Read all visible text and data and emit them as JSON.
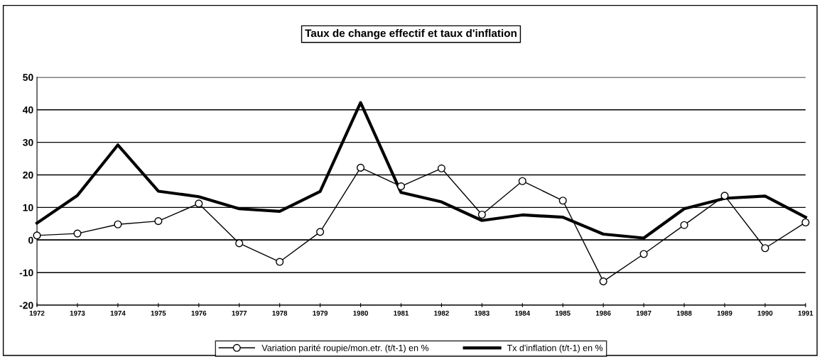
{
  "chart_data": {
    "type": "line",
    "title": "Taux de change effectif et taux d'inflation",
    "categories": [
      "1972",
      "1973",
      "1974",
      "1975",
      "1976",
      "1977",
      "1978",
      "1979",
      "1980",
      "1981",
      "1982",
      "1983",
      "1984",
      "1985",
      "1986",
      "1987",
      "1988",
      "1989",
      "1990",
      "1991"
    ],
    "series": [
      {
        "name": "Variation parité roupie/mon.etr. (t/t-1) en %",
        "color": "#000000",
        "marker": "circle",
        "values": [
          1.4,
          2,
          4.8,
          5.8,
          11.2,
          -1,
          -6.7,
          2.5,
          22.2,
          16.5,
          22,
          7.8,
          18.1,
          12.1,
          -12.7,
          -4.3,
          4.6,
          13.6,
          -2.5,
          5.4
        ]
      },
      {
        "name": "Tx d'inflation (t/t-1) en %",
        "color": "#000000",
        "marker": "none",
        "values": [
          5.2,
          13.7,
          29.2,
          15,
          13.3,
          9.6,
          8.8,
          14.9,
          42.2,
          14.6,
          11.7,
          6,
          7.7,
          7,
          1.8,
          0.6,
          9.6,
          12.8,
          13.5,
          7
        ]
      }
    ],
    "ylim": [
      -20,
      50
    ],
    "yticks": [
      -20,
      -10,
      0,
      10,
      20,
      30,
      40,
      50
    ],
    "grid": "y",
    "legend": "bottom"
  }
}
